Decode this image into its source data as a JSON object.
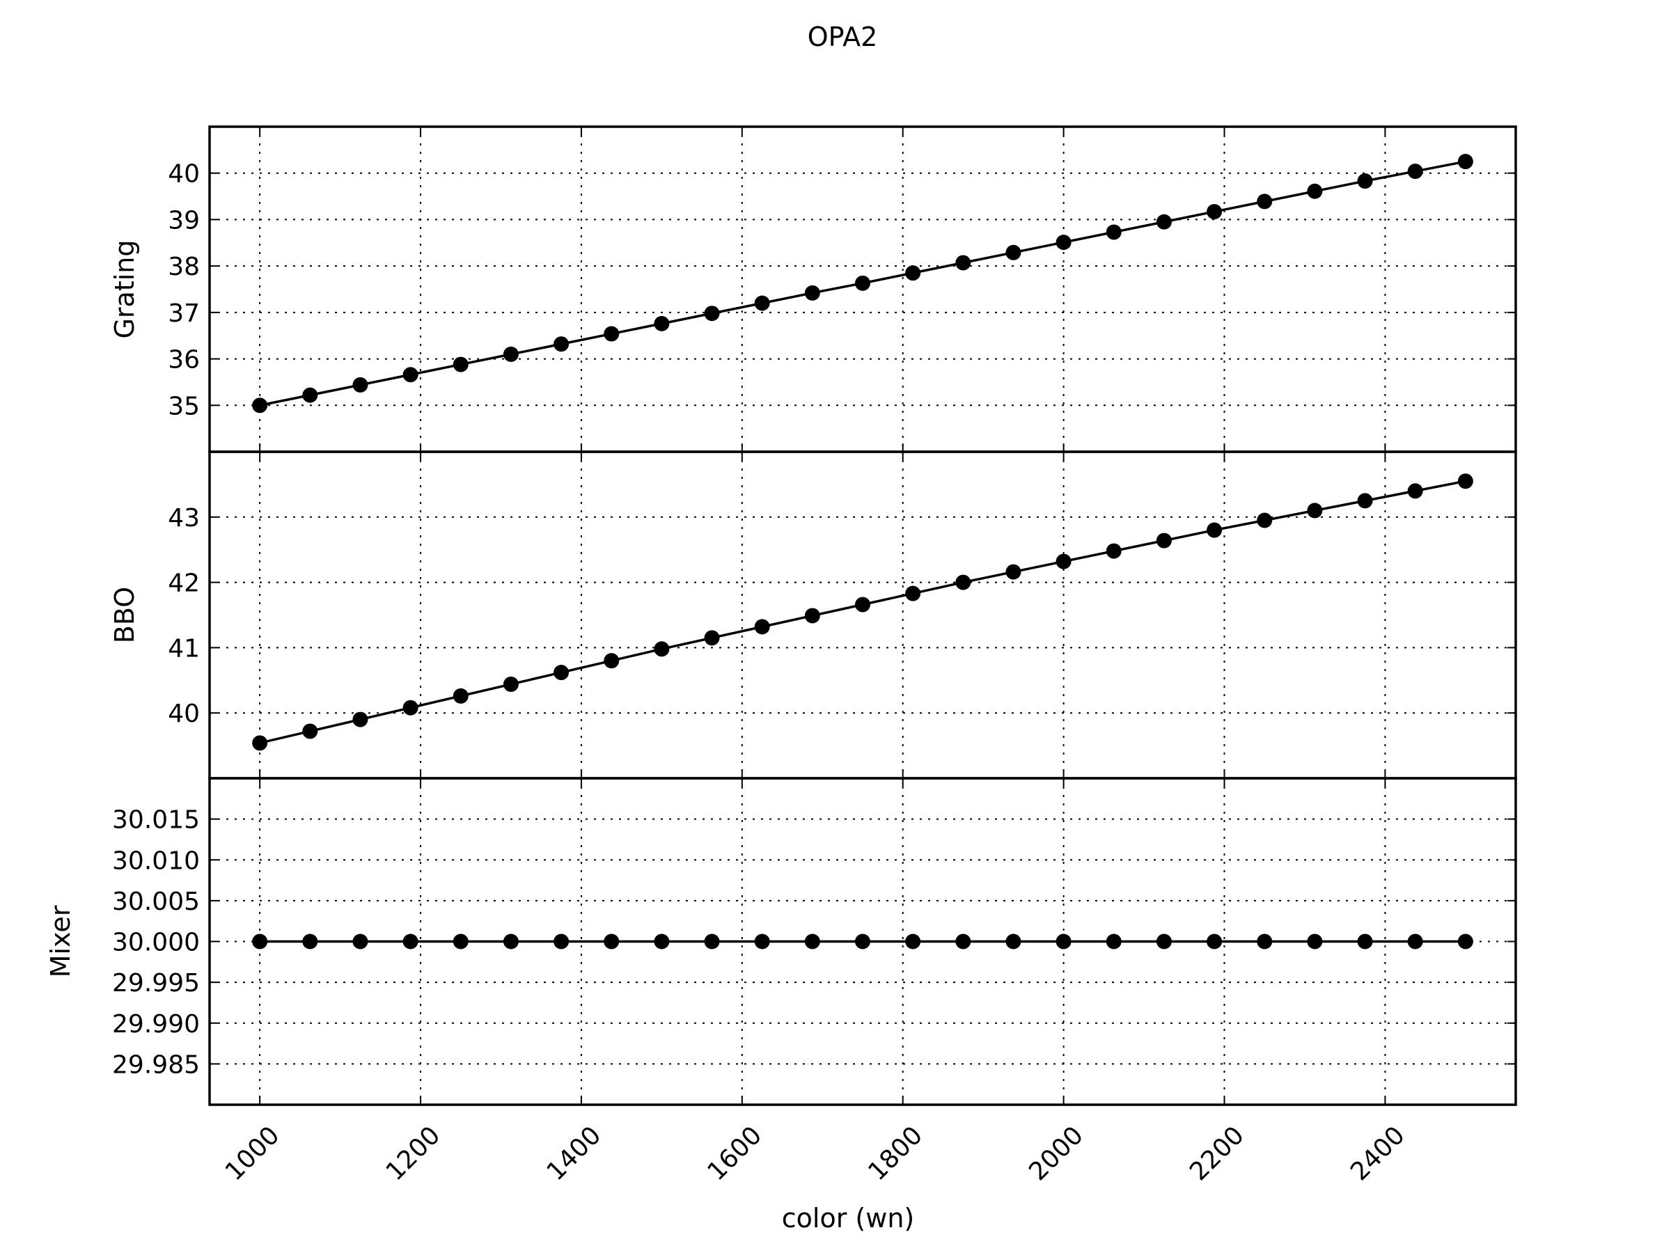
{
  "chart_data": {
    "type": "line",
    "title": "OPA2",
    "xlabel": "color (wn)",
    "x_ticks": [
      "1000",
      "1200",
      "1400",
      "1600",
      "1800",
      "2000",
      "2200",
      "2400"
    ],
    "x_tick_values": [
      1000,
      1200,
      1400,
      1600,
      1800,
      2000,
      2200,
      2400
    ],
    "xlim": [
      937.5,
      2562.5
    ],
    "grid": true,
    "shared_x": true,
    "x": [
      1000,
      1062.5,
      1125,
      1187.5,
      1250,
      1312.5,
      1375,
      1437.5,
      1500,
      1562.5,
      1625,
      1687.5,
      1750,
      1812.5,
      1875,
      1937.5,
      2000,
      2062.5,
      2125,
      2187.5,
      2250,
      2312.5,
      2375,
      2437.5,
      2500
    ],
    "panels": [
      {
        "ylabel": "Grating",
        "ylim": [
          34.0,
          41.0
        ],
        "y_ticks": [
          "35",
          "36",
          "37",
          "38",
          "39",
          "40"
        ],
        "y_tick_values": [
          35,
          36,
          37,
          38,
          39,
          40
        ],
        "values": [
          35.0,
          35.22,
          35.44,
          35.66,
          35.88,
          36.1,
          36.32,
          36.54,
          36.76,
          36.98,
          37.2,
          37.42,
          37.63,
          37.85,
          38.07,
          38.29,
          38.51,
          38.73,
          38.95,
          39.17,
          39.39,
          39.61,
          39.83,
          40.04,
          40.25
        ]
      },
      {
        "ylabel": "BBO",
        "ylim": [
          39.0,
          44.0
        ],
        "y_ticks": [
          "40",
          "41",
          "42",
          "43"
        ],
        "y_tick_values": [
          40,
          41,
          42,
          43
        ],
        "values": [
          39.54,
          39.72,
          39.9,
          40.08,
          40.26,
          40.44,
          40.62,
          40.8,
          40.98,
          41.15,
          41.32,
          41.49,
          41.66,
          41.83,
          42.0,
          42.16,
          42.32,
          42.48,
          42.64,
          42.8,
          42.95,
          43.1,
          43.25,
          43.4,
          43.55
        ]
      },
      {
        "ylabel": "Mixer",
        "ylim": [
          29.98,
          30.02
        ],
        "y_ticks": [
          "29.985",
          "29.990",
          "29.995",
          "30.000",
          "30.005",
          "30.010",
          "30.015"
        ],
        "y_tick_values": [
          29.985,
          29.99,
          29.995,
          30.0,
          30.005,
          30.01,
          30.015
        ],
        "values": [
          30.0,
          30.0,
          30.0,
          30.0,
          30.0,
          30.0,
          30.0,
          30.0,
          30.0,
          30.0,
          30.0,
          30.0,
          30.0,
          30.0,
          30.0,
          30.0,
          30.0,
          30.0,
          30.0,
          30.0,
          30.0,
          30.0,
          30.0,
          30.0,
          30.0
        ]
      }
    ],
    "colors": {
      "line": "#000000",
      "marker": "#000000",
      "background": "#ffffff"
    }
  }
}
